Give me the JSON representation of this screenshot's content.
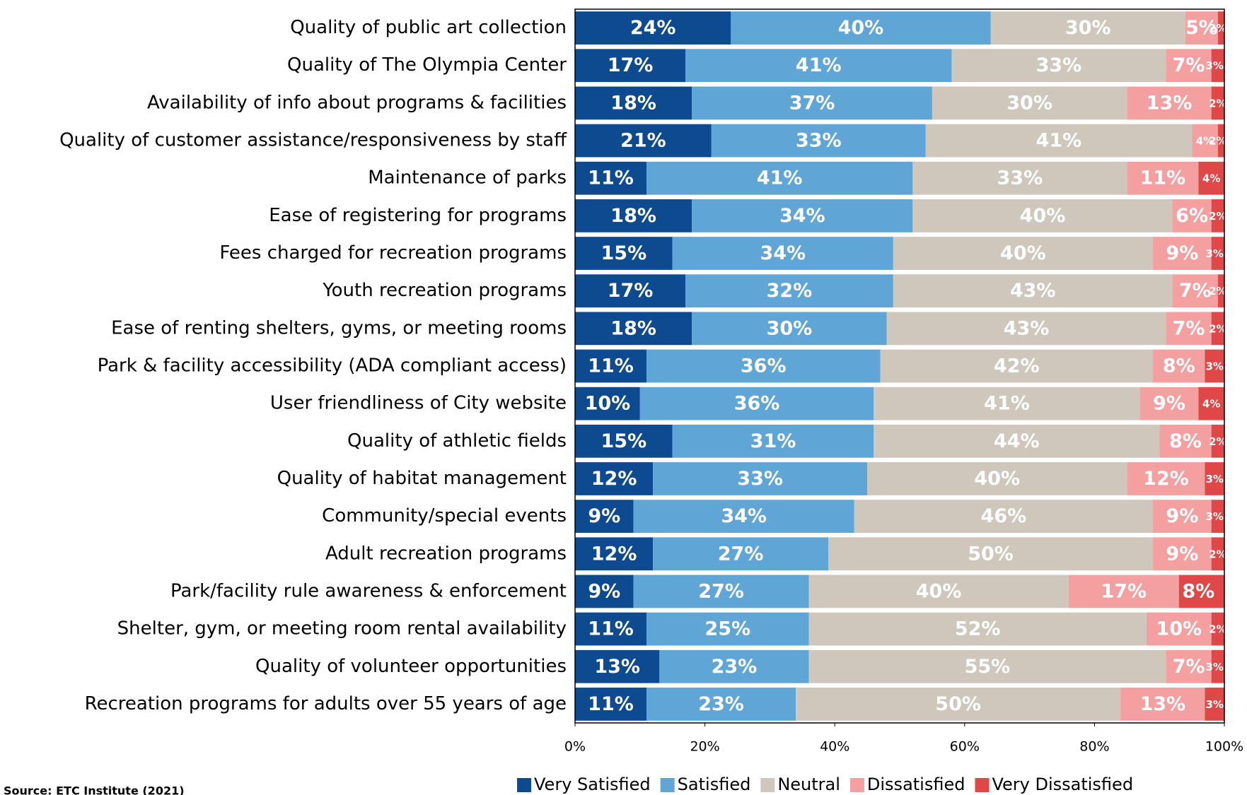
{
  "chart_data": {
    "type": "stacked_barh",
    "source": "Source: ETC Institute (2021)",
    "categories": [
      "Quality of public art collection",
      "Quality of The Olympia Center",
      "Availability of info about programs & facilities",
      "Quality of customer assistance/responsiveness by staff",
      "Maintenance of parks",
      "Ease of registering for programs",
      "Fees charged for recreation programs",
      "Youth recreation programs",
      "Ease of renting shelters, gyms, or meeting rooms",
      "Park & facility accessibility (ADA compliant access)",
      "User friendliness of City website",
      "Quality of athletic fields",
      "Quality of habitat management",
      "Community/special events",
      "Adult recreation programs",
      "Park/facility rule awareness & enforcement",
      "Shelter, gym, or meeting room rental availability",
      "Quality of volunteer opportunities",
      "Recreation programs for adults over 55 years of age"
    ],
    "series": [
      {
        "name": "Very Satisfied",
        "color": "#0e4a8f",
        "values": [
          24,
          17,
          18,
          21,
          11,
          18,
          15,
          17,
          18,
          11,
          10,
          15,
          12,
          9,
          12,
          9,
          11,
          13,
          11
        ],
        "value_labels": [
          "24%",
          "17%",
          "18%",
          "21%",
          "11%",
          "18%",
          "15%",
          "17%",
          "18%",
          "11%",
          "10%",
          "15%",
          "12%",
          "9%",
          "12%",
          "9%",
          "11%",
          "13%",
          "11%"
        ]
      },
      {
        "name": "Satisfied",
        "color": "#5fa5d6",
        "values": [
          40,
          41,
          37,
          33,
          41,
          34,
          34,
          32,
          30,
          36,
          36,
          31,
          33,
          34,
          27,
          27,
          25,
          23,
          23
        ],
        "value_labels": [
          "40%",
          "41%",
          "37%",
          "33%",
          "41%",
          "34%",
          "34%",
          "32%",
          "30%",
          "36%",
          "36%",
          "31%",
          "33%",
          "34%",
          "27%",
          "27%",
          "25%",
          "23%",
          "23%"
        ]
      },
      {
        "name": "Neutral",
        "color": "#cfc6bc",
        "values": [
          30,
          33,
          30,
          41,
          33,
          40,
          40,
          43,
          43,
          42,
          41,
          44,
          40,
          46,
          50,
          40,
          52,
          55,
          50
        ],
        "value_labels": [
          "30%",
          "33%",
          "30%",
          "41%",
          "33%",
          "40%",
          "40%",
          "43%",
          "43%",
          "42%",
          "41%",
          "44%",
          "40%",
          "46%",
          "50%",
          "40%",
          "52%",
          "55%",
          "50%"
        ]
      },
      {
        "name": "Dissatisfied",
        "color": "#f4a0a0",
        "values": [
          5,
          7,
          13,
          4,
          11,
          6,
          9,
          7,
          7,
          8,
          9,
          8,
          12,
          9,
          9,
          17,
          10,
          7,
          13
        ],
        "value_labels": [
          "5%",
          "7%",
          "13%",
          "4%",
          "11%",
          "6%",
          "9%",
          "7%",
          "7%",
          "8%",
          "9%",
          "8%",
          "12%",
          "9%",
          "9%",
          "17%",
          "10%",
          "7%",
          "13%"
        ]
      },
      {
        "name": "Very Dissatisfied",
        "color": "#e04848",
        "values": [
          2,
          3,
          2,
          2,
          4,
          2,
          3,
          2,
          2,
          3,
          4,
          2,
          3,
          3,
          2,
          8,
          2,
          3,
          3
        ],
        "value_labels": [
          "2%",
          "3%",
          "2%",
          "2%",
          "4%",
          "2%",
          "3%",
          "2%",
          "2%",
          "3%",
          "4%",
          "2%",
          "3%",
          "3%",
          "2%",
          "8%",
          "2%",
          "3%",
          "3%"
        ]
      }
    ],
    "xlim": [
      0,
      100
    ],
    "xticks": [
      {
        "value": 0,
        "label": "0%"
      },
      {
        "value": 20,
        "label": "20%"
      },
      {
        "value": 40,
        "label": "40%"
      },
      {
        "value": 60,
        "label": "60%"
      },
      {
        "value": 80,
        "label": "80%"
      },
      {
        "value": 100,
        "label": "100%"
      }
    ]
  }
}
